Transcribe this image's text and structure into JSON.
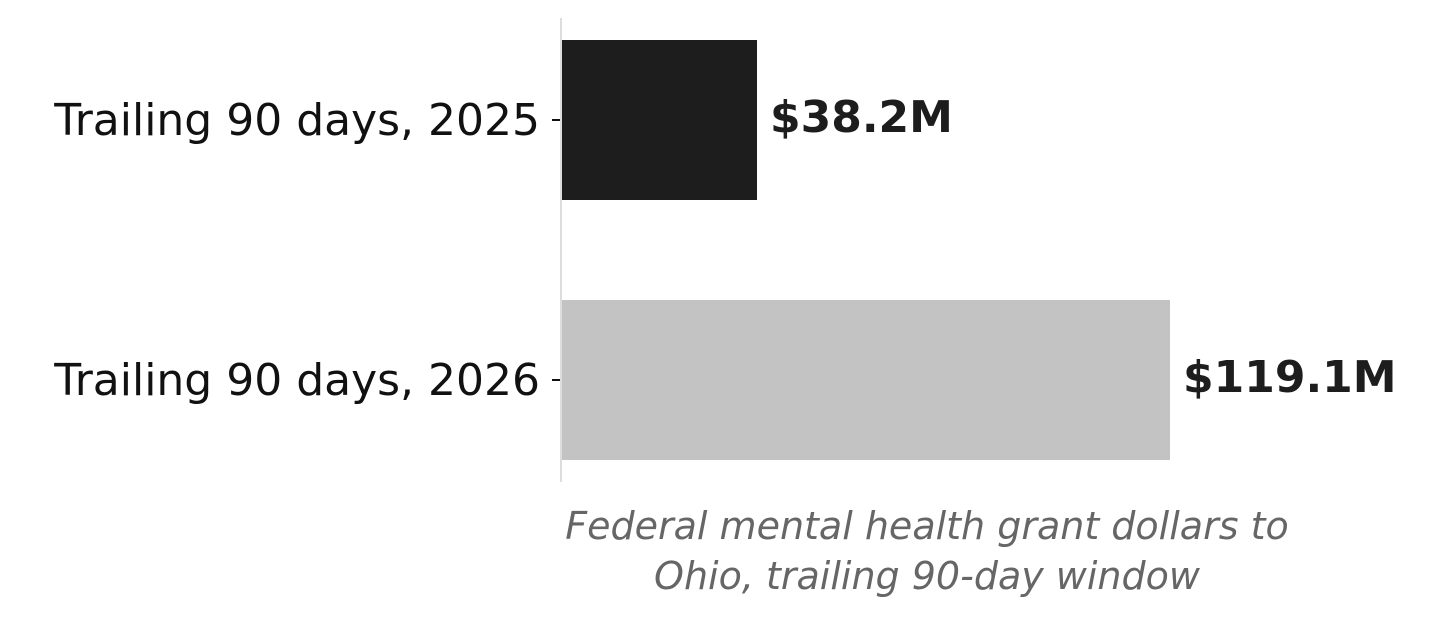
{
  "chart_data": {
    "type": "barh",
    "categories": [
      "Trailing 90 days, 2025",
      "Trailing 90 days, 2026"
    ],
    "values": [
      38.2,
      119.1
    ],
    "value_labels": [
      "$38.2M",
      "$119.1M"
    ],
    "colors": [
      "#1d1d1d",
      "#c3c3c3"
    ],
    "xlim": [
      0,
      143
    ],
    "xlabel": "Federal mental health grant dollars to\nOhio, trailing 90-day window"
  }
}
